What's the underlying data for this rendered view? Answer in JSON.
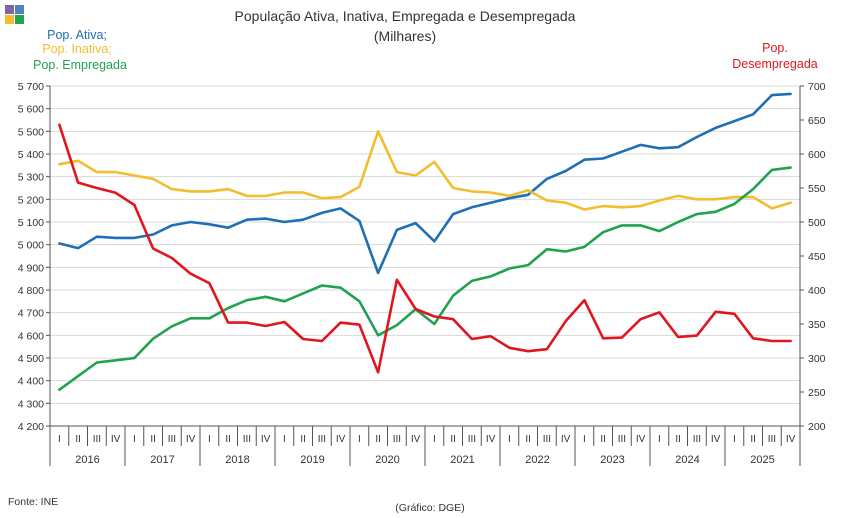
{
  "chart_data": {
    "type": "line",
    "title": "População Ativa, Inativa, Empregada e Desempregada",
    "subtitle": "(Milhares)",
    "left_axis": {
      "label_lines": [
        "Pop. Ativa;",
        "Pop. Inativa;",
        "Pop. Empregada"
      ],
      "ylim": [
        4200,
        5700
      ],
      "ticks": [
        4200,
        4300,
        4400,
        4500,
        4600,
        4700,
        4800,
        4900,
        5000,
        5100,
        5200,
        5300,
        5400,
        5500,
        5600,
        5700
      ],
      "tick_labels": [
        "4 200",
        "4 300",
        "4 400",
        "4 500",
        "4 600",
        "4 700",
        "4 800",
        "4 900",
        "5 000",
        "5 100",
        "5 200",
        "5 300",
        "5 400",
        "5 500",
        "5 600",
        "5 700"
      ]
    },
    "right_axis": {
      "label_lines": [
        "Pop.",
        "Desempregada"
      ],
      "ylim": [
        200,
        700
      ],
      "ticks": [
        200,
        250,
        300,
        350,
        400,
        450,
        500,
        550,
        600,
        650,
        700
      ],
      "tick_labels": [
        "200",
        "250",
        "300",
        "350",
        "400",
        "450",
        "500",
        "550",
        "600",
        "650",
        "700"
      ]
    },
    "quarter_labels": [
      "I",
      "II",
      "III",
      "IV"
    ],
    "years": [
      "2016",
      "2017",
      "2018",
      "2019",
      "2020",
      "2021",
      "2022",
      "2023",
      "2024",
      "2025"
    ],
    "x": [
      "2016-I",
      "2016-II",
      "2016-III",
      "2016-IV",
      "2017-I",
      "2017-II",
      "2017-III",
      "2017-IV",
      "2018-I",
      "2018-II",
      "2018-III",
      "2018-IV",
      "2019-I",
      "2019-II",
      "2019-III",
      "2019-IV",
      "2020-I",
      "2020-II",
      "2020-III",
      "2020-IV",
      "2021-I",
      "2021-II",
      "2021-III",
      "2021-IV",
      "2022-I",
      "2022-II",
      "2022-III",
      "2022-IV",
      "2023-I",
      "2023-II",
      "2023-III",
      "2023-IV",
      "2024-I",
      "2024-II",
      "2024-III",
      "2024-IV",
      "2025-I",
      "2025-II",
      "2025-III",
      "2025-IV"
    ],
    "series": [
      {
        "name": "Pop. Ativa",
        "axis": "left",
        "color": "#1f6fb7",
        "values": [
          5005,
          4985,
          5035,
          5030,
          5030,
          5045,
          5085,
          5100,
          5090,
          5075,
          5110,
          5115,
          5100,
          5110,
          5140,
          5160,
          5105,
          4875,
          5065,
          5095,
          5015,
          5135,
          5165,
          5185,
          5205,
          5220,
          5290,
          5325,
          5375,
          5380,
          5410,
          5440,
          5425,
          5430,
          5475,
          5515,
          5545,
          5575,
          5660,
          5665
        ]
      },
      {
        "name": "Pop. Inativa",
        "axis": "left",
        "color": "#f2bd2e",
        "values": [
          5355,
          5370,
          5320,
          5320,
          5305,
          5290,
          5245,
          5235,
          5235,
          5245,
          5215,
          5215,
          5230,
          5230,
          5205,
          5210,
          5255,
          5500,
          5320,
          5305,
          5365,
          5250,
          5235,
          5230,
          5215,
          5240,
          5195,
          5185,
          5155,
          5170,
          5165,
          5170,
          5195,
          5215,
          5200,
          5200,
          5210,
          5210,
          5160,
          5185
        ]
      },
      {
        "name": "Pop. Empregada",
        "axis": "left",
        "color": "#20a24f",
        "values": [
          4360,
          4420,
          4480,
          4490,
          4500,
          4585,
          4640,
          4675,
          4675,
          4720,
          4755,
          4770,
          4750,
          4785,
          4820,
          4810,
          4750,
          4600,
          4645,
          4715,
          4650,
          4775,
          4840,
          4860,
          4895,
          4910,
          4980,
          4970,
          4990,
          5055,
          5085,
          5085,
          5060,
          5100,
          5135,
          5145,
          5180,
          5245,
          5330,
          5340
        ]
      },
      {
        "name": "Pop. Desempregada",
        "axis": "right",
        "color": "#e0161e",
        "values": [
          643,
          558,
          550,
          543,
          525,
          461,
          447,
          424,
          410,
          352,
          352,
          347,
          353,
          328,
          325,
          352,
          349,
          279,
          415,
          372,
          361,
          357,
          328,
          332,
          315,
          310,
          313,
          354,
          385,
          329,
          330,
          357,
          367,
          331,
          333,
          368,
          365,
          329,
          325,
          325
        ]
      }
    ],
    "notes": {
      "source": "Fonte: INE",
      "credit": "(Gráfico: DGE)"
    }
  }
}
